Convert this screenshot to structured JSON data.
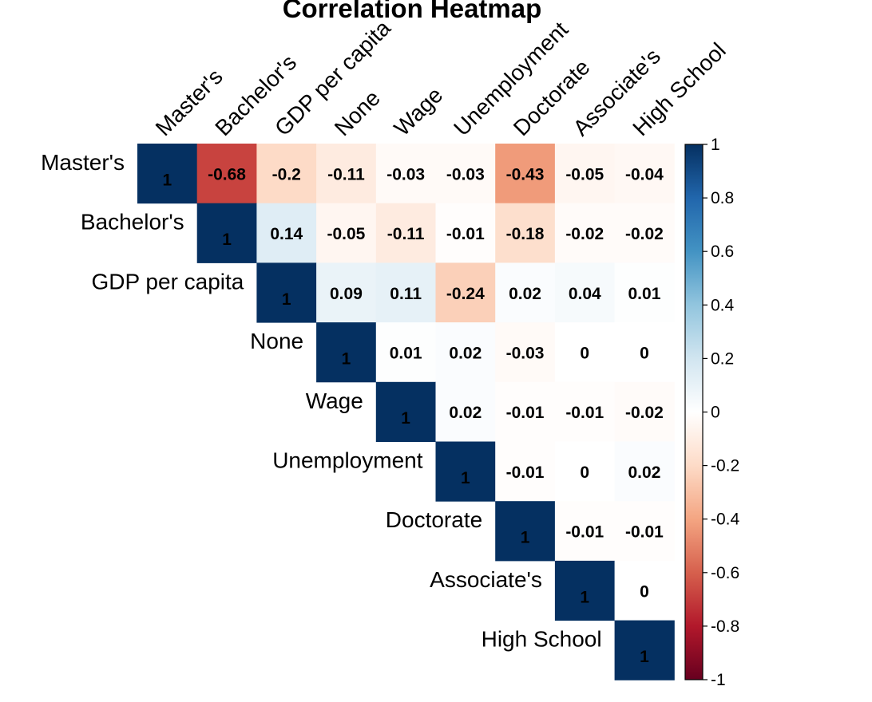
{
  "chart_data": {
    "type": "heatmap",
    "title": "Correlation Heatmap",
    "variables": [
      "Master's",
      "Bachelor's",
      "GDP per capita",
      "None",
      "Wage",
      "Unemployment",
      "Doctorate",
      "Associate's",
      "High School"
    ],
    "matrix": [
      [
        1,
        -0.68,
        -0.2,
        -0.11,
        -0.03,
        -0.03,
        -0.43,
        -0.05,
        -0.04
      ],
      [
        null,
        1,
        0.14,
        -0.05,
        -0.11,
        -0.01,
        -0.18,
        -0.02,
        -0.02
      ],
      [
        null,
        null,
        1,
        0.09,
        0.11,
        -0.24,
        0.02,
        0.04,
        0.01
      ],
      [
        null,
        null,
        null,
        1,
        0.01,
        0.02,
        -0.03,
        0,
        0
      ],
      [
        null,
        null,
        null,
        null,
        1,
        0.02,
        -0.01,
        -0.01,
        -0.02
      ],
      [
        null,
        null,
        null,
        null,
        null,
        1,
        -0.01,
        0,
        0.02
      ],
      [
        null,
        null,
        null,
        null,
        null,
        null,
        1,
        -0.01,
        -0.01
      ],
      [
        null,
        null,
        null,
        null,
        null,
        null,
        null,
        1,
        0
      ],
      [
        null,
        null,
        null,
        null,
        null,
        null,
        null,
        null,
        1
      ]
    ],
    "color_scale": {
      "range": [
        -1,
        1
      ],
      "ticks": [
        "1",
        "0.8",
        "0.6",
        "0.4",
        "0.2",
        "0",
        "-0.2",
        "-0.4",
        "-0.6",
        "-0.8",
        "-1"
      ],
      "low_color": "#67001F",
      "mid_color": "#FFFFFF",
      "high_color": "#053061"
    },
    "legend_position": "right",
    "layout": "upper-triangle"
  }
}
